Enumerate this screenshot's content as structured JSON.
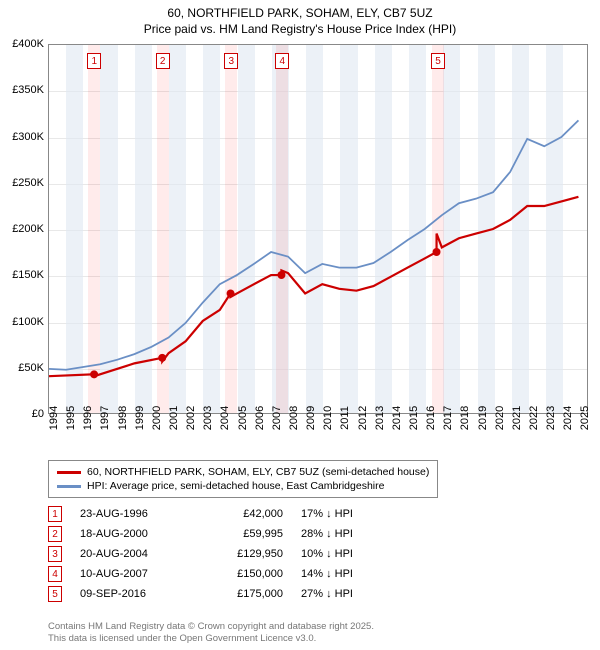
{
  "title": {
    "line1": "60, NORTHFIELD PARK, SOHAM, ELY, CB7 5UZ",
    "line2": "Price paid vs. HM Land Registry's House Price Index (HPI)"
  },
  "chart": {
    "type": "line",
    "background_color": "#ffffff",
    "grid_color": "#e8e8e8",
    "border_color": "#888888",
    "label_fontsize": 11,
    "title_fontsize": 12,
    "x_start": 1994,
    "x_end": 2025.5,
    "x_ticks": [
      1994,
      1995,
      1996,
      1997,
      1998,
      1999,
      2000,
      2001,
      2002,
      2003,
      2004,
      2005,
      2006,
      2007,
      2008,
      2009,
      2010,
      2011,
      2012,
      2013,
      2014,
      2015,
      2016,
      2017,
      2018,
      2019,
      2020,
      2021,
      2022,
      2023,
      2024,
      2025
    ],
    "x_band_color": "#e0e7f2",
    "ylim": [
      0,
      400000
    ],
    "ytick_step": 50000,
    "y_tick_labels": [
      "£0",
      "£50K",
      "£100K",
      "£150K",
      "£200K",
      "£250K",
      "£300K",
      "£350K",
      "£400K"
    ],
    "series": [
      {
        "name": "price_paid",
        "color": "#cc0000",
        "width": 2.2,
        "points": [
          [
            1994,
            40000
          ],
          [
            1996.64,
            42000
          ],
          [
            1996.64,
            40000
          ],
          [
            1998,
            48000
          ],
          [
            1999,
            54000
          ],
          [
            2000.63,
            59995
          ],
          [
            2000.63,
            56000
          ],
          [
            2001,
            65000
          ],
          [
            2002,
            78000
          ],
          [
            2003,
            100000
          ],
          [
            2004,
            112000
          ],
          [
            2004.63,
            129950
          ],
          [
            2004.63,
            126000
          ],
          [
            2005,
            130000
          ],
          [
            2006,
            140000
          ],
          [
            2007,
            150000
          ],
          [
            2007.61,
            150000
          ],
          [
            2007.61,
            155000
          ],
          [
            2008,
            152000
          ],
          [
            2009,
            130000
          ],
          [
            2010,
            140000
          ],
          [
            2011,
            135000
          ],
          [
            2012,
            133000
          ],
          [
            2013,
            138000
          ],
          [
            2014,
            148000
          ],
          [
            2015,
            158000
          ],
          [
            2016,
            168000
          ],
          [
            2016.69,
            175000
          ],
          [
            2016.69,
            195000
          ],
          [
            2017,
            180000
          ],
          [
            2018,
            190000
          ],
          [
            2019,
            195000
          ],
          [
            2020,
            200000
          ],
          [
            2021,
            210000
          ],
          [
            2022,
            225000
          ],
          [
            2023,
            225000
          ],
          [
            2024,
            230000
          ],
          [
            2025,
            235000
          ]
        ]
      },
      {
        "name": "hpi",
        "color": "#6a8fc5",
        "width": 1.8,
        "points": [
          [
            1994,
            48000
          ],
          [
            1995,
            47000
          ],
          [
            1996,
            50000
          ],
          [
            1997,
            53000
          ],
          [
            1998,
            58000
          ],
          [
            1999,
            64000
          ],
          [
            2000,
            72000
          ],
          [
            2001,
            82000
          ],
          [
            2002,
            98000
          ],
          [
            2003,
            120000
          ],
          [
            2004,
            140000
          ],
          [
            2005,
            150000
          ],
          [
            2006,
            162000
          ],
          [
            2007,
            175000
          ],
          [
            2008,
            170000
          ],
          [
            2009,
            152000
          ],
          [
            2010,
            162000
          ],
          [
            2011,
            158000
          ],
          [
            2012,
            158000
          ],
          [
            2013,
            163000
          ],
          [
            2014,
            175000
          ],
          [
            2015,
            188000
          ],
          [
            2016,
            200000
          ],
          [
            2017,
            215000
          ],
          [
            2018,
            228000
          ],
          [
            2019,
            233000
          ],
          [
            2020,
            240000
          ],
          [
            2021,
            262000
          ],
          [
            2022,
            298000
          ],
          [
            2023,
            290000
          ],
          [
            2024,
            300000
          ],
          [
            2025,
            318000
          ]
        ]
      }
    ],
    "sale_markers": [
      {
        "n": "1",
        "x": 1996.64,
        "y": 42000
      },
      {
        "n": "2",
        "x": 2000.63,
        "y": 59995
      },
      {
        "n": "3",
        "x": 2004.63,
        "y": 129950
      },
      {
        "n": "4",
        "x": 2007.61,
        "y": 150000
      },
      {
        "n": "5",
        "x": 2016.69,
        "y": 175000
      }
    ],
    "sale_band_color": "rgba(255,0,0,0.08)",
    "sale_badge_border": "#cc0000",
    "sale_marker_fill": "#cc0000"
  },
  "legend": {
    "items": [
      {
        "color": "#cc0000",
        "label": "60, NORTHFIELD PARK, SOHAM, ELY, CB7 5UZ (semi-detached house)"
      },
      {
        "color": "#6a8fc5",
        "label": "HPI: Average price, semi-detached house, East Cambridgeshire"
      }
    ]
  },
  "sales_table": {
    "rows": [
      {
        "n": "1",
        "date": "23-AUG-1996",
        "price": "£42,000",
        "pct": "17% ↓ HPI"
      },
      {
        "n": "2",
        "date": "18-AUG-2000",
        "price": "£59,995",
        "pct": "28% ↓ HPI"
      },
      {
        "n": "3",
        "date": "20-AUG-2004",
        "price": "£129,950",
        "pct": "10% ↓ HPI"
      },
      {
        "n": "4",
        "date": "10-AUG-2007",
        "price": "£150,000",
        "pct": "14% ↓ HPI"
      },
      {
        "n": "5",
        "date": "09-SEP-2016",
        "price": "£175,000",
        "pct": "27% ↓ HPI"
      }
    ]
  },
  "footer": {
    "line1": "Contains HM Land Registry data © Crown copyright and database right 2025.",
    "line2": "This data is licensed under the Open Government Licence v3.0."
  }
}
